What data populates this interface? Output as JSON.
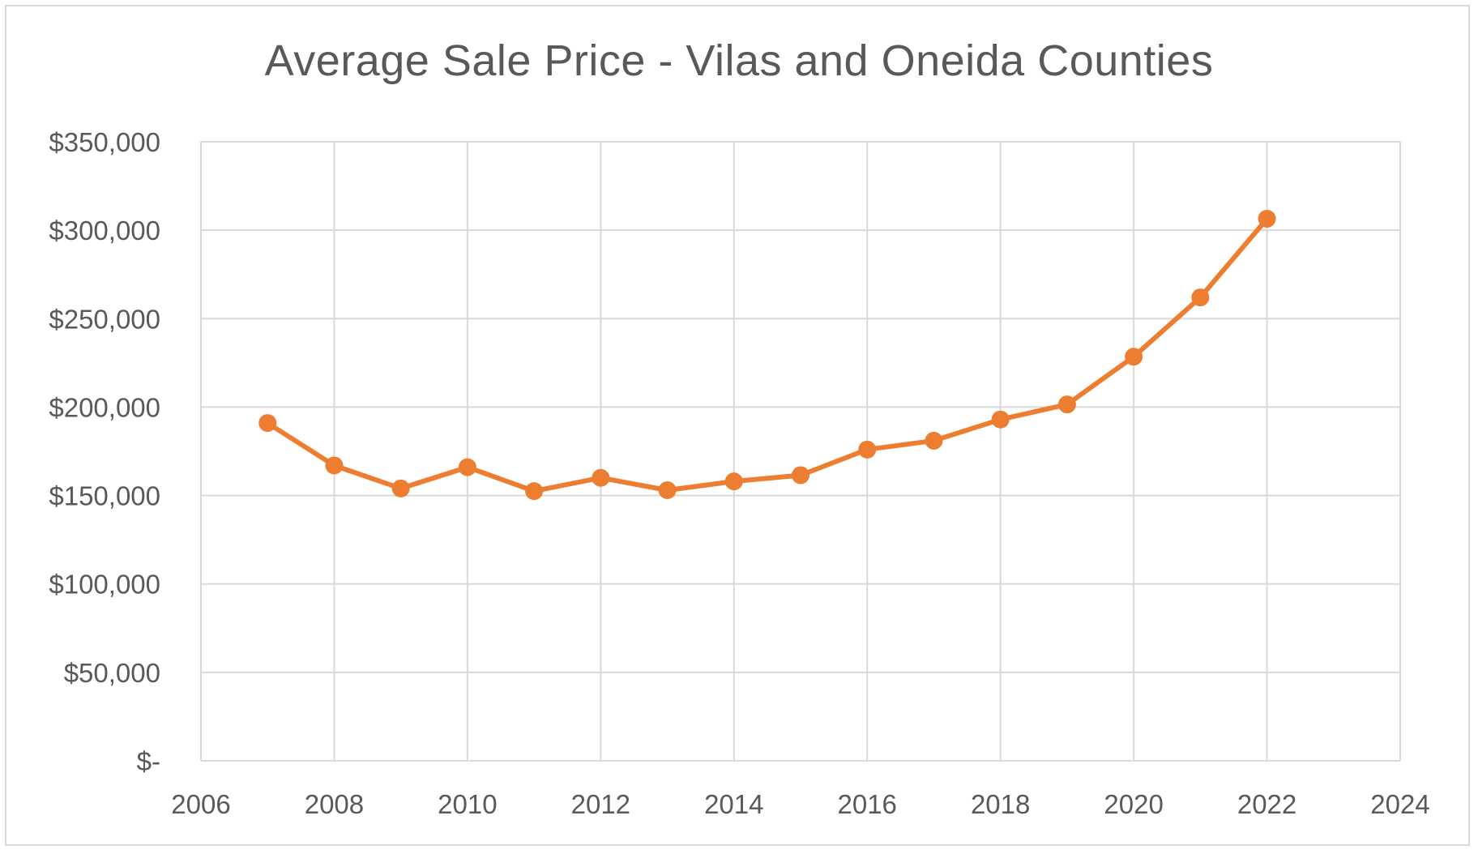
{
  "chart_data": {
    "type": "line",
    "title": "Average Sale Price - Vilas and Oneida Counties",
    "xlabel": "",
    "ylabel": "",
    "xlim": [
      2006,
      2024
    ],
    "ylim": [
      0,
      350000
    ],
    "grid": true,
    "legend": "none",
    "line_color": "#ED7D31",
    "grid_color": "#d9d9d9",
    "x_ticks": [
      "2006",
      "2008",
      "2010",
      "2012",
      "2014",
      "2016",
      "2018",
      "2020",
      "2022",
      "2024"
    ],
    "y_ticks": [
      "$-",
      "$50,000",
      "$100,000",
      "$150,000",
      "$200,000",
      "$250,000",
      "$300,000",
      "$350,000"
    ],
    "series": [
      {
        "x": [
          2007,
          2008,
          2009,
          2010,
          2011,
          2012,
          2013,
          2014,
          2015,
          2016,
          2017,
          2018,
          2019,
          2020,
          2021,
          2022
        ],
        "y": [
          191000,
          167000,
          154000,
          166000,
          152500,
          160000,
          153000,
          158000,
          161500,
          176000,
          181000,
          193000,
          201500,
          228500,
          262000,
          306500
        ]
      }
    ]
  }
}
